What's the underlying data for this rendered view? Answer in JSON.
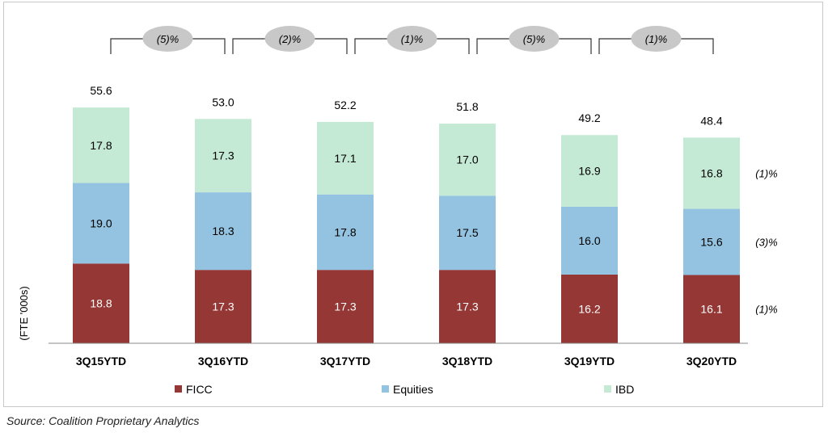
{
  "chart_data": {
    "type": "bar",
    "stacked": true,
    "categories": [
      "3Q15YTD",
      "3Q16YTD",
      "3Q17YTD",
      "3Q18YTD",
      "3Q19YTD",
      "3Q20YTD"
    ],
    "series": [
      {
        "name": "FICC",
        "color": "#953735",
        "values": [
          18.8,
          17.3,
          17.3,
          17.3,
          16.2,
          16.1
        ],
        "labels": [
          "18.8",
          "17.3",
          "17.3",
          "17.3",
          "16.2",
          "16.1"
        ]
      },
      {
        "name": "Equities",
        "color": "#93c3e0",
        "values": [
          19.0,
          18.3,
          17.8,
          17.5,
          16.0,
          15.6
        ],
        "labels": [
          "19.0",
          "18.3",
          "17.8",
          "17.5",
          "16.0",
          "15.6"
        ]
      },
      {
        "name": "IBD",
        "color": "#c4ead5",
        "values": [
          17.8,
          17.3,
          17.1,
          17.0,
          16.9,
          16.8
        ],
        "labels": [
          "17.8",
          "17.3",
          "17.1",
          "17.0",
          "16.9",
          "16.8"
        ]
      }
    ],
    "totals": [
      "55.6",
      "53.0",
      "52.2",
      "51.8",
      "49.2",
      "48.4"
    ],
    "yoy_changes": [
      "(5)%",
      "(2)%",
      "(1)%",
      "(5)%",
      "(1)%"
    ],
    "series_change_labels": [
      "(1)%",
      "(3)%",
      "(1)%"
    ],
    "ylabel": "(FTE '000s)",
    "legend": [
      "FICC",
      "Equities",
      "IBD"
    ],
    "legend_position": "bottom",
    "grid": false
  },
  "source": "Source: Coalition Proprietary Analytics"
}
